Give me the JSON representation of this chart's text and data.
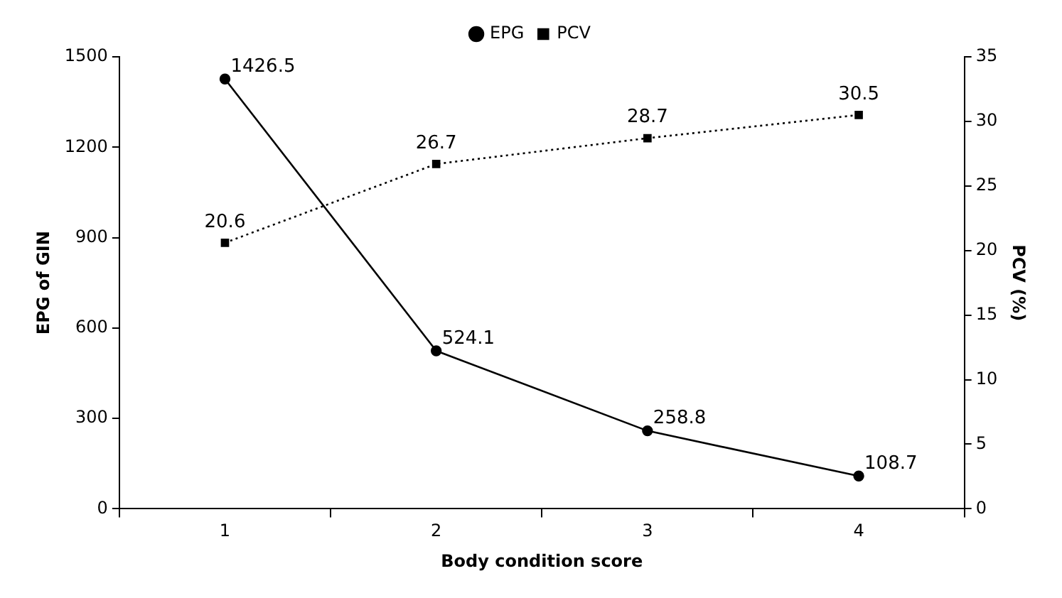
{
  "chart_data": {
    "type": "line",
    "xlabel": "Body condition score",
    "ylabel": "EPG of GIN",
    "y2label": "PCV (%)",
    "categories": [
      "1",
      "2",
      "3",
      "4"
    ],
    "series": [
      {
        "name": "EPG",
        "color": "#000000",
        "values": [
          1426.5,
          524.1,
          258.8,
          108.7
        ],
        "marker": "circle",
        "line_style": "solid"
      },
      {
        "name": "PCV",
        "color": "#000000",
        "values": [
          20.6,
          26.7,
          28.7,
          30.5
        ],
        "axis": "y2",
        "marker": "square",
        "line_style": "dotted"
      }
    ],
    "ylim": [
      0,
      1500
    ],
    "yticks": [
      0,
      300,
      600,
      900,
      1200,
      1500
    ],
    "y2lim": [
      0,
      35
    ],
    "y2ticks": [
      0,
      5,
      10,
      15,
      20,
      25,
      30,
      35
    ],
    "data_labels": true,
    "grid": false,
    "legend": "top"
  }
}
